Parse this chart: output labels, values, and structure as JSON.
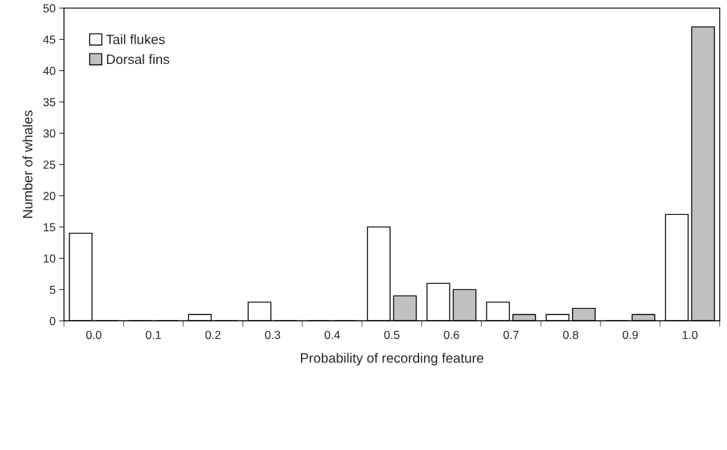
{
  "chart_data": {
    "type": "bar",
    "xlabel": "Probability of recording feature",
    "ylabel": "Number of whales",
    "categories": [
      "0.0",
      "0.1",
      "0.2",
      "0.3",
      "0.4",
      "0.5",
      "0.6",
      "0.7",
      "0.8",
      "0.9",
      "1.0"
    ],
    "series": [
      {
        "name": "Tail flukes",
        "color": "#ffffff",
        "values": [
          14,
          0,
          1,
          3,
          0,
          15,
          6,
          3,
          1,
          0,
          17
        ]
      },
      {
        "name": "Dorsal fins",
        "color": "#c0c0c0",
        "values": [
          0,
          0,
          0,
          0,
          0,
          4,
          5,
          1,
          2,
          1,
          47
        ]
      }
    ],
    "ylim": [
      0,
      50
    ],
    "yticks": [
      0,
      5,
      10,
      15,
      20,
      25,
      30,
      35,
      40,
      45,
      50
    ],
    "grid": false,
    "legend": "top left"
  }
}
